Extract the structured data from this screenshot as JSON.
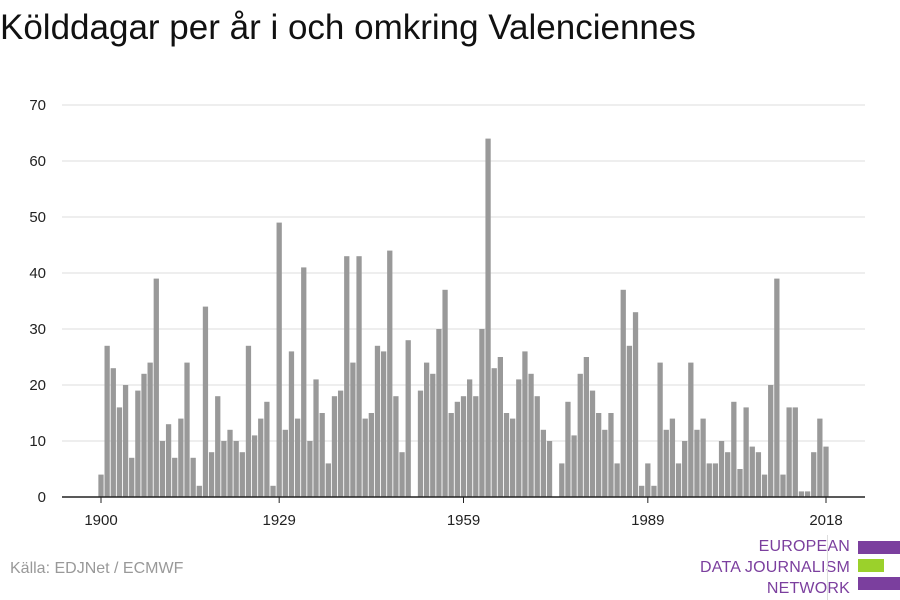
{
  "title": "Kölddagar per år i och omkring Valenciennes",
  "source": "Källa: EDJNet / ECMWF",
  "logo": {
    "lines": [
      "EUROPEAN",
      "DATA JOURNALISM",
      "NETWORK"
    ],
    "colors": {
      "text": "#7b3f9e",
      "purple": "#7b3f9e",
      "green": "#9bd12b"
    }
  },
  "colors": {
    "bar": "#999999",
    "grid": "#dddddd",
    "axis": "#222222"
  },
  "chart_data": {
    "type": "bar",
    "title": "Kölddagar per år i och omkring Valenciennes",
    "xlabel": "",
    "ylabel": "",
    "x_start": 1900,
    "x_end": 2018,
    "x_ticks": [
      1900,
      1929,
      1959,
      1989,
      2018
    ],
    "y_ticks": [
      0,
      10,
      20,
      30,
      40,
      50,
      60,
      70
    ],
    "ylim": [
      0,
      70
    ],
    "grid": true,
    "values": [
      4,
      27,
      23,
      16,
      20,
      7,
      19,
      22,
      24,
      39,
      10,
      13,
      7,
      14,
      24,
      7,
      2,
      34,
      8,
      18,
      10,
      12,
      10,
      8,
      27,
      11,
      14,
      17,
      2,
      49,
      12,
      26,
      14,
      41,
      10,
      21,
      15,
      6,
      18,
      19,
      43,
      24,
      43,
      14,
      15,
      27,
      26,
      44,
      18,
      8,
      28,
      0,
      19,
      24,
      22,
      30,
      37,
      15,
      17,
      18,
      21,
      18,
      30,
      64,
      23,
      25,
      15,
      14,
      21,
      26,
      22,
      18,
      12,
      10,
      0,
      6,
      17,
      11,
      22,
      25,
      19,
      15,
      12,
      15,
      6,
      37,
      27,
      33,
      2,
      6,
      2,
      24,
      12,
      14,
      6,
      10,
      24,
      12,
      14,
      6,
      6,
      10,
      8,
      17,
      5,
      16,
      9,
      8,
      4,
      20,
      39,
      4,
      16,
      16,
      1,
      1,
      8,
      14,
      9
    ]
  }
}
